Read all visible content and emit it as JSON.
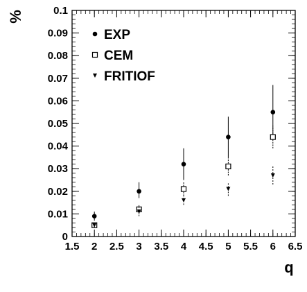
{
  "chart_data": {
    "type": "scatter",
    "xlabel": "q",
    "ylabel": "%",
    "xlim": [
      1.5,
      6.5
    ],
    "ylim": [
      0,
      0.1
    ],
    "x_tick_labels": [
      "1.5",
      "2",
      "2.5",
      "3",
      "3.5",
      "4",
      "4.5",
      "5",
      "5.5",
      "6",
      "6.5"
    ],
    "y_tick_labels": [
      "0",
      "0.01",
      "0.02",
      "0.03",
      "0.04",
      "0.05",
      "0.06",
      "0.07",
      "0.08",
      "0.09",
      "0.1"
    ],
    "legend": {
      "position": "top-left",
      "entries": [
        "EXP",
        "CEM",
        "FRITIOF"
      ]
    },
    "series": [
      {
        "name": "EXP",
        "marker": "filled-circle",
        "x": [
          2,
          3,
          4,
          5,
          6
        ],
        "y": [
          0.009,
          0.02,
          0.032,
          0.044,
          0.055
        ],
        "err_low": [
          0.002,
          0.003,
          0.007,
          0.009,
          0.01
        ],
        "err_high": [
          0.002,
          0.004,
          0.007,
          0.009,
          0.012
        ]
      },
      {
        "name": "CEM",
        "marker": "open-square",
        "x": [
          2,
          3,
          4,
          5,
          6
        ],
        "y": [
          0.005,
          0.012,
          0.021,
          0.031,
          0.044
        ],
        "err_low": [
          0.001,
          0.002,
          0.003,
          0.004,
          0.005
        ],
        "err_high": [
          0.001,
          0.002,
          0.003,
          0.004,
          0.005
        ]
      },
      {
        "name": "FRITIOF",
        "marker": "filled-triangle-down",
        "x": [
          2,
          3,
          4,
          5,
          6
        ],
        "y": [
          0.005,
          0.011,
          0.016,
          0.021,
          0.027
        ],
        "err_low": [
          0.001,
          0.002,
          0.002,
          0.003,
          0.004
        ],
        "err_high": [
          0.001,
          0.002,
          0.002,
          0.003,
          0.004
        ]
      }
    ]
  }
}
